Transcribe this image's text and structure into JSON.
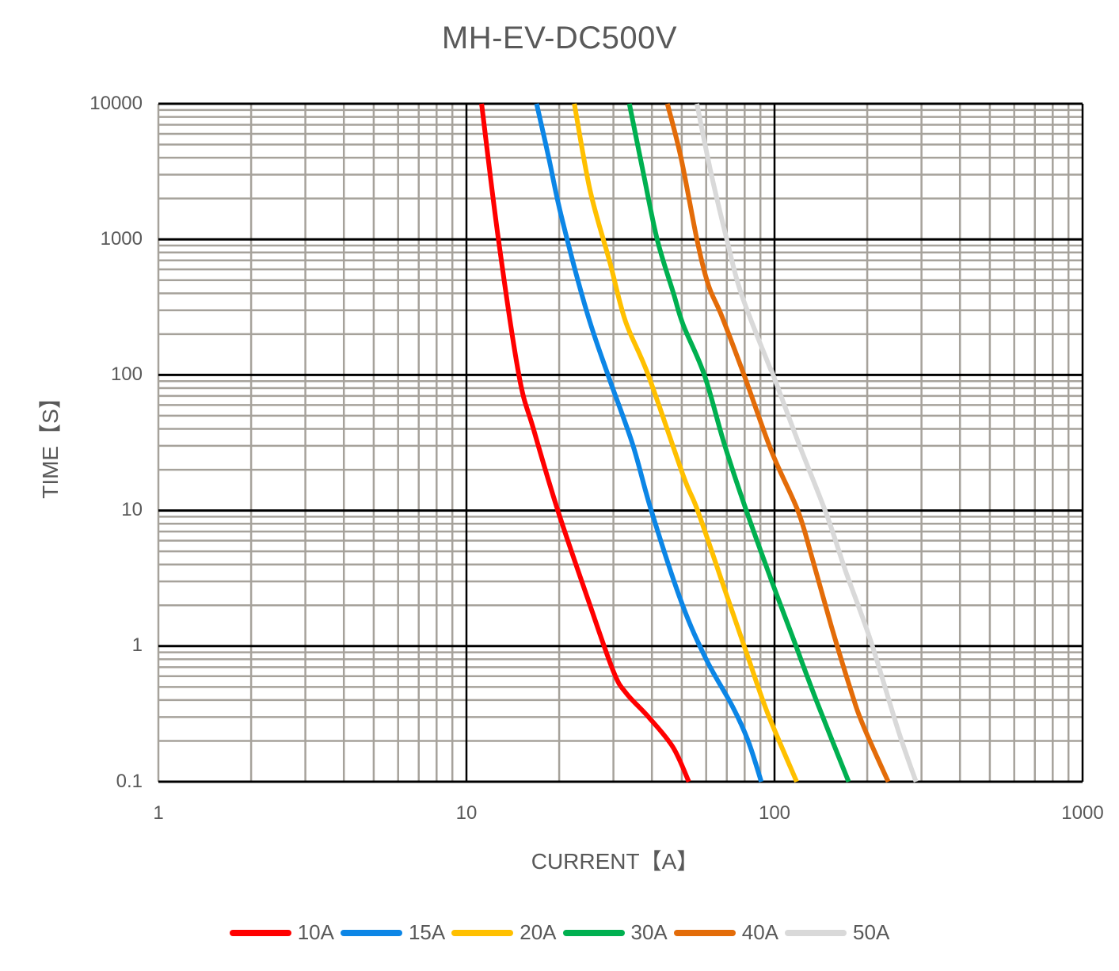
{
  "chart": {
    "title": "MH-EV-DC500V",
    "xlabel": "CURRENT【A】",
    "ylabel": "TIME【S】",
    "x_ticks": [
      "1",
      "10",
      "100",
      "1000"
    ],
    "y_ticks": [
      "10000",
      "1000",
      "100",
      "10",
      "1",
      "0.1"
    ]
  },
  "legend": {
    "items": [
      {
        "label": "10A",
        "color": "#FF0000"
      },
      {
        "label": "15A",
        "color": "#0C86E6"
      },
      {
        "label": "20A",
        "color": "#FFC000"
      },
      {
        "label": "30A",
        "color": "#00B050"
      },
      {
        "label": "40A",
        "color": "#E36C09"
      },
      {
        "label": "50A",
        "color": "#D9D9D9"
      }
    ]
  },
  "chart_data": {
    "type": "line",
    "title": "MH-EV-DC500V",
    "xlabel": "CURRENT【A】",
    "ylabel": "TIME【S】",
    "xscale": "log",
    "yscale": "log",
    "xlim": [
      1,
      1000
    ],
    "ylim": [
      0.1,
      10000
    ],
    "x_ticks": [
      1,
      10,
      100,
      1000
    ],
    "y_ticks": [
      0.1,
      1,
      10,
      100,
      1000,
      10000
    ],
    "grid": true,
    "legend_position": "bottom",
    "series": [
      {
        "name": "10A",
        "color": "#FF0000",
        "points": [
          [
            11.2,
            10000
          ],
          [
            12.7,
            1000
          ],
          [
            14.8,
            100
          ],
          [
            16.5,
            40
          ],
          [
            19.8,
            10
          ],
          [
            25,
            2.1
          ],
          [
            30,
            0.65
          ],
          [
            33,
            0.45
          ],
          [
            39,
            0.3
          ],
          [
            46.8,
            0.18
          ],
          [
            52.7,
            0.1
          ]
        ]
      },
      {
        "name": "15A",
        "color": "#0C86E6",
        "points": [
          [
            16.9,
            10000
          ],
          [
            18.5,
            4000
          ],
          [
            20.3,
            1500
          ],
          [
            24.5,
            300
          ],
          [
            28.8,
            100
          ],
          [
            34.6,
            31
          ],
          [
            39.8,
            10
          ],
          [
            49.9,
            2.1
          ],
          [
            60,
            0.8
          ],
          [
            73,
            0.36
          ],
          [
            82.1,
            0.2
          ],
          [
            90.6,
            0.1
          ]
        ]
      },
      {
        "name": "20A",
        "color": "#FFC000",
        "points": [
          [
            22.4,
            10000
          ],
          [
            25.2,
            2300
          ],
          [
            29.2,
            680
          ],
          [
            32.8,
            250
          ],
          [
            38.9,
            100
          ],
          [
            50.6,
            18
          ],
          [
            56.3,
            10
          ],
          [
            69,
            2.6
          ],
          [
            82,
            0.83
          ],
          [
            95,
            0.32
          ],
          [
            118,
            0.1
          ]
        ]
      },
      {
        "name": "30A",
        "color": "#00B050",
        "points": [
          [
            33.8,
            10000
          ],
          [
            37.4,
            3200
          ],
          [
            41.6,
            1000
          ],
          [
            47,
            400
          ],
          [
            50.5,
            235
          ],
          [
            59.2,
            100
          ],
          [
            68.7,
            31
          ],
          [
            81,
            10
          ],
          [
            98,
            3.0
          ],
          [
            114,
            1.2
          ],
          [
            136,
            0.41
          ],
          [
            174,
            0.1
          ]
        ]
      },
      {
        "name": "40A",
        "color": "#E36C09",
        "points": [
          [
            44.9,
            10000
          ],
          [
            49.7,
            4000
          ],
          [
            56,
            1000
          ],
          [
            61,
            460
          ],
          [
            67.5,
            270
          ],
          [
            79.6,
            100
          ],
          [
            98,
            27
          ],
          [
            119,
            10
          ],
          [
            132,
            4.6
          ],
          [
            153,
            1.4
          ],
          [
            177,
            0.47
          ],
          [
            194,
            0.26
          ],
          [
            234,
            0.1
          ]
        ]
      },
      {
        "name": "50A",
        "color": "#D9D9D9",
        "points": [
          [
            56,
            10000
          ],
          [
            62,
            3200
          ],
          [
            70,
            1000
          ],
          [
            77.9,
            400
          ],
          [
            95.6,
            120
          ],
          [
            99,
            100
          ],
          [
            120,
            31
          ],
          [
            148,
            9.2
          ],
          [
            170,
            3.6
          ],
          [
            205,
            1.1
          ],
          [
            252,
            0.24
          ],
          [
            288,
            0.1
          ]
        ]
      }
    ]
  }
}
